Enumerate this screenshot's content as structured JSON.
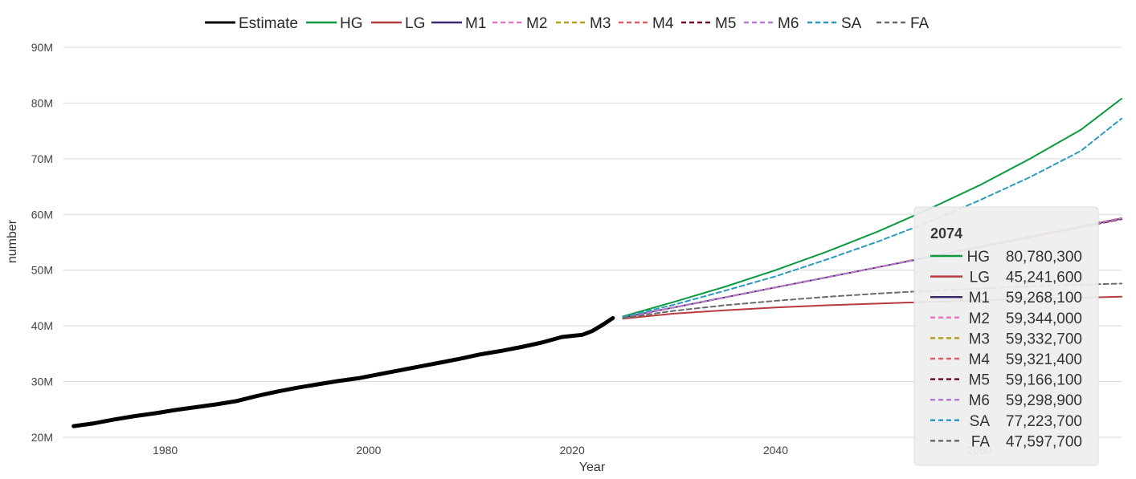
{
  "chart_data": {
    "type": "line",
    "xlabel": "Year",
    "ylabel": "number",
    "xlim": [
      1970,
      2074
    ],
    "ylim": [
      20000000,
      90000000
    ],
    "x_ticks": [
      1980,
      2000,
      2020,
      2040,
      2060
    ],
    "x_tick_labels": [
      "1980",
      "2000",
      "2020",
      "2040",
      "2060"
    ],
    "y_ticks": [
      20000000,
      30000000,
      40000000,
      50000000,
      60000000,
      70000000,
      80000000,
      90000000
    ],
    "y_tick_labels": [
      "20M",
      "30M",
      "40M",
      "50M",
      "60M",
      "70M",
      "80M",
      "90M"
    ],
    "grid": "horizontal",
    "legend_position": "top",
    "series": [
      {
        "name": "Estimate",
        "color": "#000000",
        "dash": "solid",
        "width": 5,
        "x": [
          1971,
          1973,
          1975,
          1977,
          1979,
          1981,
          1983,
          1985,
          1987,
          1989,
          1991,
          1993,
          1995,
          1997,
          1999,
          2001,
          2003,
          2005,
          2007,
          2009,
          2011,
          2013,
          2015,
          2017,
          2019,
          2020,
          2021,
          2022,
          2023,
          2024
        ],
        "y": [
          22000000,
          22500000,
          23200000,
          23800000,
          24300000,
          24900000,
          25400000,
          25900000,
          26500000,
          27400000,
          28200000,
          28900000,
          29500000,
          30100000,
          30600000,
          31300000,
          32000000,
          32700000,
          33400000,
          34100000,
          34900000,
          35500000,
          36200000,
          37000000,
          38000000,
          38200000,
          38400000,
          39100000,
          40200000,
          41400000
        ]
      },
      {
        "name": "HG",
        "color": "#0b9a3e",
        "dash": "solid",
        "width": 2,
        "x": [
          2025,
          2030,
          2035,
          2040,
          2045,
          2050,
          2055,
          2060,
          2065,
          2070,
          2074
        ],
        "y": [
          41700000,
          44300000,
          47000000,
          50000000,
          53300000,
          56900000,
          60900000,
          65200000,
          70000000,
          75200000,
          80780300
        ]
      },
      {
        "name": "LG",
        "color": "#b73b3e",
        "dash": "solid",
        "width": 2,
        "x": [
          2025,
          2030,
          2035,
          2040,
          2045,
          2050,
          2055,
          2060,
          2065,
          2070,
          2074
        ],
        "y": [
          41300000,
          42200000,
          42800000,
          43300000,
          43700000,
          44000000,
          44300000,
          44600000,
          44850000,
          45050000,
          45241600
        ]
      },
      {
        "name": "M1",
        "color": "#3a2a6b",
        "dash": "solid",
        "width": 2,
        "x": [
          2025,
          2030,
          2035,
          2040,
          2045,
          2050,
          2055,
          2060,
          2065,
          2070,
          2074
        ],
        "y": [
          41500000,
          43300000,
          45100000,
          46900000,
          48700000,
          50500000,
          52300000,
          54200000,
          56000000,
          57800000,
          59268100
        ]
      },
      {
        "name": "M2",
        "color": "#e377c2",
        "dash": "dash",
        "width": 2,
        "x": [
          2025,
          2030,
          2035,
          2040,
          2045,
          2050,
          2055,
          2060,
          2065,
          2070,
          2074
        ],
        "y": [
          41500000,
          43300000,
          45100000,
          46900000,
          48700000,
          50500000,
          52400000,
          54200000,
          56100000,
          57900000,
          59344000
        ]
      },
      {
        "name": "M3",
        "color": "#b5a21a",
        "dash": "dash",
        "width": 2,
        "x": [
          2025,
          2030,
          2035,
          2040,
          2045,
          2050,
          2055,
          2060,
          2065,
          2070,
          2074
        ],
        "y": [
          41500000,
          43300000,
          45100000,
          46900000,
          48700000,
          50500000,
          52400000,
          54200000,
          56100000,
          57900000,
          59332700
        ]
      },
      {
        "name": "M4",
        "color": "#d9626b",
        "dash": "dash",
        "width": 2,
        "x": [
          2025,
          2030,
          2035,
          2040,
          2045,
          2050,
          2055,
          2060,
          2065,
          2070,
          2074
        ],
        "y": [
          41500000,
          43300000,
          45100000,
          46900000,
          48700000,
          50500000,
          52400000,
          54200000,
          56100000,
          57900000,
          59321400
        ]
      },
      {
        "name": "M5",
        "color": "#6b0f2a",
        "dash": "dash",
        "width": 2,
        "x": [
          2025,
          2030,
          2035,
          2040,
          2045,
          2050,
          2055,
          2060,
          2065,
          2070,
          2074
        ],
        "y": [
          41500000,
          43300000,
          45100000,
          46900000,
          48700000,
          50500000,
          52300000,
          54100000,
          55900000,
          57700000,
          59166100
        ]
      },
      {
        "name": "M6",
        "color": "#b77bd3",
        "dash": "dash",
        "width": 2,
        "x": [
          2025,
          2030,
          2035,
          2040,
          2045,
          2050,
          2055,
          2060,
          2065,
          2070,
          2074
        ],
        "y": [
          41500000,
          43300000,
          45100000,
          46900000,
          48700000,
          50500000,
          52300000,
          54200000,
          56000000,
          57800000,
          59298900
        ]
      },
      {
        "name": "SA",
        "color": "#2b9abf",
        "dash": "dash",
        "width": 2,
        "x": [
          2025,
          2030,
          2035,
          2040,
          2045,
          2050,
          2055,
          2060,
          2065,
          2070,
          2074
        ],
        "y": [
          41600000,
          43800000,
          46300000,
          48900000,
          51900000,
          55100000,
          58600000,
          62500000,
          66700000,
          71400000,
          77223700
        ]
      },
      {
        "name": "FA",
        "color": "#6b6b6b",
        "dash": "dash",
        "width": 2,
        "x": [
          2025,
          2030,
          2035,
          2040,
          2045,
          2050,
          2055,
          2060,
          2065,
          2070,
          2074
        ],
        "y": [
          41400000,
          42700000,
          43700000,
          44500000,
          45200000,
          45800000,
          46300000,
          46700000,
          47100000,
          47400000,
          47597700
        ]
      }
    ]
  },
  "tooltip": {
    "title": "2074",
    "rows": [
      {
        "name": "HG",
        "value": "80,780,300"
      },
      {
        "name": "LG",
        "value": "45,241,600"
      },
      {
        "name": "M1",
        "value": "59,268,100"
      },
      {
        "name": "M2",
        "value": "59,344,000"
      },
      {
        "name": "M3",
        "value": "59,332,700"
      },
      {
        "name": "M4",
        "value": "59,321,400"
      },
      {
        "name": "M5",
        "value": "59,166,100"
      },
      {
        "name": "M6",
        "value": "59,298,900"
      },
      {
        "name": "SA",
        "value": "77,223,700"
      },
      {
        "name": "FA",
        "value": "47,597,700"
      }
    ]
  }
}
